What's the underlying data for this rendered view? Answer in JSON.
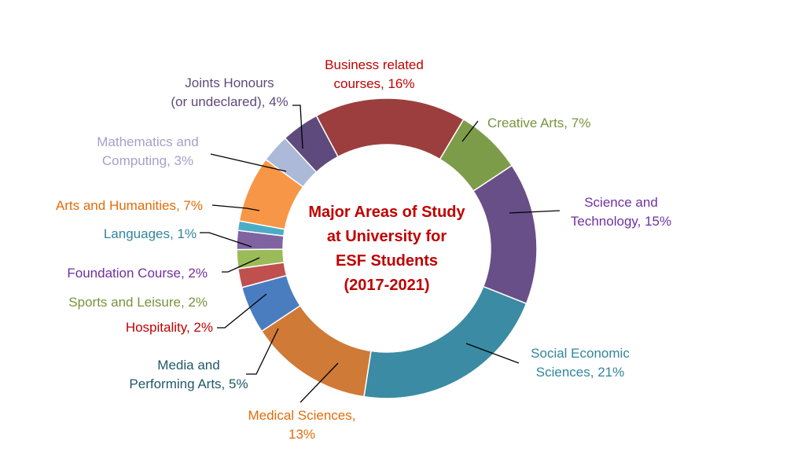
{
  "chart_data": {
    "type": "pie",
    "variant": "donut",
    "title_lines": [
      "Major Areas of Study",
      "at University for",
      "ESF Students",
      "(2017-2021)"
    ],
    "title_color": "#c00000",
    "slices": [
      {
        "label_lines": [
          "Business related",
          "courses, 16%"
        ],
        "value": 16,
        "color": "#9c3e3e",
        "label_color": "#c00000"
      },
      {
        "label_lines": [
          "Creative Arts, 7%"
        ],
        "value": 7,
        "color": "#7d9c49",
        "label_color": "#77933c"
      },
      {
        "label_lines": [
          "Science and",
          "Technology, 15%"
        ],
        "value": 15,
        "color": "#684f87",
        "label_color": "#7030a0"
      },
      {
        "label_lines": [
          "Social Economic",
          "Sciences, 21%"
        ],
        "value": 21,
        "color": "#3a8ba3",
        "label_color": "#31859c"
      },
      {
        "label_lines": [
          "Medical Sciences,",
          "13%"
        ],
        "value": 13,
        "color": "#cf7a36",
        "label_color": "#e36c09"
      },
      {
        "label_lines": [
          "Media and",
          "Performing Arts, 5%"
        ],
        "value": 5,
        "color": "#4a7dc0",
        "label_color": "#215968"
      },
      {
        "label_lines": [
          "Hospitality, 2%"
        ],
        "value": 2,
        "color": "#c0504d",
        "label_color": "#c00000"
      },
      {
        "label_lines": [
          "Sports and Leisure, 2%"
        ],
        "value": 2,
        "color": "#9bbb59",
        "label_color": "#77933c"
      },
      {
        "label_lines": [
          "Foundation Course, 2%"
        ],
        "value": 2,
        "color": "#8064a2",
        "label_color": "#7030a0"
      },
      {
        "label_lines": [
          "Languages, 1%"
        ],
        "value": 1,
        "color": "#4bacc6",
        "label_color": "#31859c"
      },
      {
        "label_lines": [
          "Arts and Humanities, 7%"
        ],
        "value": 7,
        "color": "#f79646",
        "label_color": "#e36c09"
      },
      {
        "label_lines": [
          "Mathematics and",
          "Computing, 3%"
        ],
        "value": 3,
        "color": "#acb9d9",
        "label_color": "#a79fc9"
      },
      {
        "label_lines": [
          "Joints Honours",
          "(or undeclared), 4%"
        ],
        "value": 4,
        "color": "#5f4a7e",
        "label_color": "#604a7b"
      }
    ]
  }
}
